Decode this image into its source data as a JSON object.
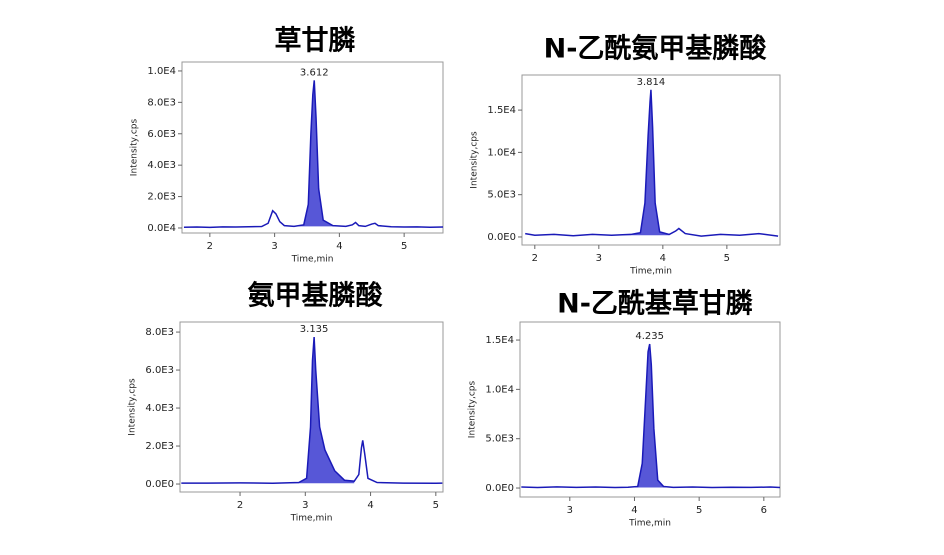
{
  "chart_data": [
    {
      "type": "line",
      "title": "草甘膦",
      "xlabel": "Time,min",
      "ylabel": "Intensity,cps",
      "color": "#1a1ab8",
      "x": [
        1.6,
        1.8,
        2.0,
        2.2,
        2.4,
        2.6,
        2.8,
        2.9,
        2.97,
        3.02,
        3.08,
        3.15,
        3.3,
        3.45,
        3.52,
        3.56,
        3.59,
        3.612,
        3.64,
        3.68,
        3.75,
        3.9,
        4.1,
        4.2,
        4.25,
        4.3,
        4.4,
        4.5,
        4.55,
        4.6,
        4.8,
        5.0,
        5.2,
        5.4,
        5.6
      ],
      "values": [
        50,
        60,
        40,
        70,
        60,
        80,
        90,
        300,
        1100,
        900,
        400,
        150,
        100,
        200,
        1500,
        6000,
        8500,
        9400,
        7000,
        2500,
        500,
        150,
        100,
        200,
        350,
        150,
        100,
        250,
        300,
        150,
        80,
        60,
        70,
        50,
        60
      ],
      "peak": 3.612,
      "xlim": [
        1.57,
        5.6
      ],
      "ylim": [
        -320,
        10570
      ],
      "xticks": [
        2,
        3,
        4,
        5
      ],
      "yticks": [
        {
          "value": 0,
          "label": "0.0E4"
        },
        {
          "value": 2000,
          "label": "2.0E3"
        },
        {
          "value": 4000,
          "label": "4.0E3"
        },
        {
          "value": 6000,
          "label": "6.0E3"
        },
        {
          "value": 8000,
          "label": "8.0E3"
        },
        {
          "value": 10000,
          "label": "1.0E4"
        }
      ]
    },
    {
      "type": "line",
      "title": "N-乙酰氨甲基膦酸",
      "xlabel": "Time,min",
      "ylabel": "Intensity,cps",
      "color": "#1a1ab8",
      "x": [
        1.85,
        2.0,
        2.3,
        2.6,
        2.9,
        3.2,
        3.5,
        3.65,
        3.72,
        3.77,
        3.8,
        3.814,
        3.84,
        3.88,
        3.95,
        4.1,
        4.2,
        4.25,
        4.35,
        4.6,
        4.9,
        5.2,
        5.5,
        5.8
      ],
      "values": [
        400,
        200,
        300,
        150,
        300,
        200,
        300,
        500,
        4000,
        12000,
        16000,
        17400,
        13000,
        4000,
        600,
        300,
        700,
        1000,
        400,
        100,
        300,
        200,
        400,
        100
      ],
      "peak": 3.814,
      "xlim": [
        1.8,
        5.83
      ],
      "ylim": [
        -950,
        19150
      ],
      "xticks": [
        2,
        3,
        4,
        5
      ],
      "yticks": [
        {
          "value": 0,
          "label": "0.0E0"
        },
        {
          "value": 5000,
          "label": "5.0E3"
        },
        {
          "value": 10000,
          "label": "1.0E4"
        },
        {
          "value": 15000,
          "label": "1.5E4"
        }
      ]
    },
    {
      "type": "line",
      "title": "氨甲基膦酸",
      "xlabel": "Time,min",
      "ylabel": "Intensity,cps",
      "color": "#1a1ab8",
      "x": [
        1.1,
        1.5,
        2.0,
        2.5,
        2.9,
        3.02,
        3.08,
        3.11,
        3.135,
        3.16,
        3.22,
        3.3,
        3.45,
        3.6,
        3.75,
        3.82,
        3.86,
        3.88,
        3.91,
        3.96,
        4.1,
        4.5,
        5.0,
        5.1
      ],
      "values": [
        50,
        50,
        60,
        40,
        80,
        300,
        3000,
        6500,
        7740,
        6000,
        3000,
        1800,
        700,
        200,
        150,
        500,
        1900,
        2300,
        1600,
        300,
        80,
        50,
        40,
        50
      ],
      "peak": 3.135,
      "xlim": [
        1.08,
        5.11
      ],
      "ylim": [
        -420,
        8530
      ],
      "xticks": [
        2,
        3,
        4,
        5
      ],
      "yticks": [
        {
          "value": 0,
          "label": "0.0E0"
        },
        {
          "value": 2000,
          "label": "2.0E3"
        },
        {
          "value": 4000,
          "label": "4.0E3"
        },
        {
          "value": 6000,
          "label": "6.0E3"
        },
        {
          "value": 8000,
          "label": "8.0E3"
        }
      ]
    },
    {
      "type": "line",
      "title": "N-乙酰基草甘膦",
      "xlabel": "Time,min",
      "ylabel": "Intensity,cps",
      "color": "#1a1ab8",
      "x": [
        2.25,
        2.5,
        2.8,
        3.1,
        3.4,
        3.7,
        3.9,
        4.05,
        4.12,
        4.18,
        4.21,
        4.235,
        4.26,
        4.3,
        4.36,
        4.45,
        4.6,
        4.9,
        5.2,
        5.5,
        5.8,
        6.1,
        6.25
      ],
      "values": [
        100,
        50,
        120,
        60,
        100,
        50,
        80,
        150,
        2500,
        10000,
        13800,
        14600,
        12500,
        6000,
        800,
        150,
        60,
        100,
        50,
        80,
        60,
        100,
        50
      ],
      "peak": 4.235,
      "xlim": [
        2.23,
        6.25
      ],
      "ylim": [
        -910,
        16830
      ],
      "xticks": [
        3,
        4,
        5,
        6
      ],
      "yticks": [
        {
          "value": 0,
          "label": "0.0E0"
        },
        {
          "value": 5000,
          "label": "5.0E3"
        },
        {
          "value": 10000,
          "label": "1.0E4"
        },
        {
          "value": 15000,
          "label": "1.5E4"
        }
      ]
    }
  ]
}
